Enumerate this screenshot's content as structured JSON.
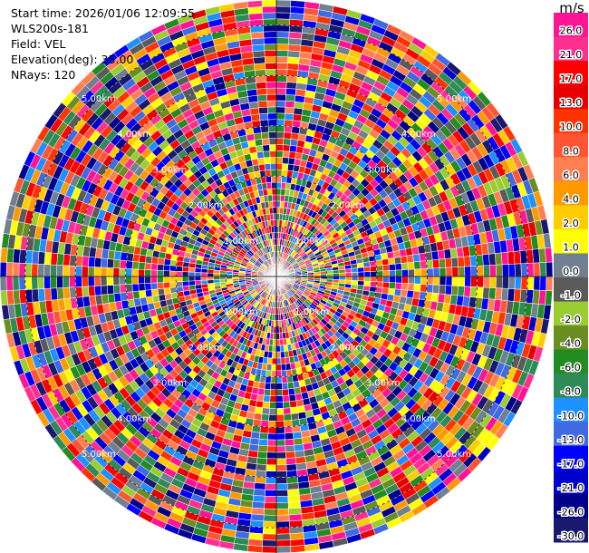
{
  "header": {
    "start_time": "Start time: 2026/01/06 12:09:55",
    "instrument": "WLS200s-181",
    "field": "Field: VEL",
    "elevation": "Elevation(deg): 35.00",
    "nrays": "NRays: 120"
  },
  "colorbar": {
    "unit": "m/s",
    "ticks": [
      "26.0",
      "21.0",
      "17.0",
      "13.0",
      "10.0",
      "8.0",
      "6.0",
      "4.0",
      "2.0",
      "1.0",
      "0.0",
      "-1.0",
      "-2.0",
      "-4.0",
      "-6.0",
      "-8.0",
      "-10.0",
      "-13.0",
      "-17.0",
      "-21.0",
      "-26.0",
      "-30.0"
    ],
    "colors": [
      "#ff1493",
      "#ff2f8f",
      "#ff0000",
      "#e60000",
      "#ff3300",
      "#ff5533",
      "#ff7f50",
      "#ff9900",
      "#ffcc00",
      "#ffff00",
      "#708090",
      "#5a5a5a",
      "#9acd32",
      "#6b8e23",
      "#228b22",
      "#2e8b57",
      "#1e90ff",
      "#4169e1",
      "#0000ff",
      "#0000cd",
      "#00008b",
      "#191970"
    ]
  },
  "chart_data": {
    "type": "heatmap",
    "title": "",
    "field": "VEL",
    "units": "m/s",
    "nrays": 120,
    "elevation_deg": 35.0,
    "range_rings_km": [
      1.0,
      2.0,
      3.0,
      4.0,
      5.0
    ],
    "range_ring_labels": [
      "1.00km",
      "2.00km",
      "3.00km",
      "4.00km",
      "5.00km"
    ],
    "max_range_km": 5.5,
    "color_scale_min": -30.0,
    "color_scale_max": 26.0,
    "grid": true
  }
}
